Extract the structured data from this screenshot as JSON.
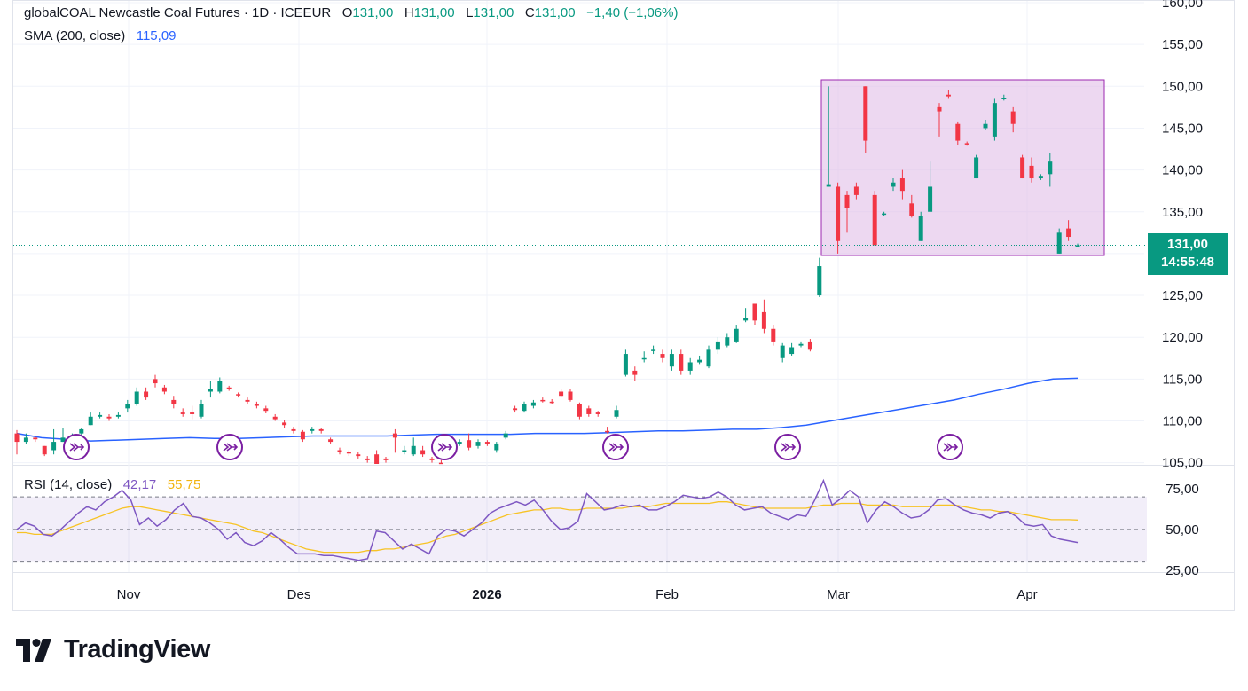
{
  "legend": {
    "title": "globalCOAL Newcastle Coal Futures · 1D · ICEEUR",
    "o_label": "O",
    "o_value": "131,00",
    "h_label": "H",
    "h_value": "131,00",
    "l_label": "L",
    "l_value": "131,00",
    "c_label": "C",
    "c_value": "131,00",
    "change": "−1,40 (−1,06%)",
    "sma_label": "SMA (200, close)",
    "sma_value": "115,09",
    "rsi_label": "RSI (14, close)",
    "rsi_value": "42,17",
    "rsi_ma_value": "55,75"
  },
  "price_tag": {
    "price": "131,00",
    "countdown": "14:55:48"
  },
  "brand": {
    "name": "TradingView"
  },
  "colors": {
    "up": "#089981",
    "down": "#f23645",
    "sma": "#2962ff",
    "rsi": "#7e57c2",
    "rsi_ma": "#f7c325",
    "highlight": "#e1bee7"
  },
  "chart_data": [
    {
      "type": "candlestick",
      "title": "globalCOAL Newcastle Coal Futures",
      "ylim": [
        105,
        160
      ],
      "y_ticks": [
        "160,00",
        "155,00",
        "150,00",
        "145,00",
        "140,00",
        "135,00",
        "130,00",
        "125,00",
        "120,00",
        "115,00",
        "110,00",
        "105,00"
      ],
      "x_ticks": [
        "Nov",
        "Des",
        "2026",
        "Feb",
        "Mar",
        "Apr"
      ],
      "candles": [
        [
          108.5,
          107.5,
          108.9,
          106.0
        ],
        [
          107.5,
          108.0,
          108.5,
          107.2
        ],
        [
          108.0,
          107.8,
          108.2,
          107.5
        ],
        [
          107.0,
          106.0,
          107.0,
          105.8
        ],
        [
          106.5,
          107.5,
          109.0,
          106.0
        ],
        [
          107.5,
          108.0,
          109.2,
          107.5
        ],
        [
          108.0,
          108.2,
          108.5,
          107.8
        ],
        [
          108.5,
          109.0,
          109.2,
          108.3
        ],
        [
          109.5,
          110.5,
          111.0,
          109.5
        ],
        [
          110.5,
          110.7,
          111.0,
          110.3
        ],
        [
          110.5,
          110.3,
          110.8,
          110.0
        ],
        [
          110.5,
          110.7,
          111.0,
          110.3
        ],
        [
          111.5,
          112.0,
          112.5,
          111.0
        ],
        [
          112.0,
          113.5,
          114.0,
          111.8
        ],
        [
          113.5,
          112.8,
          114.0,
          112.5
        ],
        [
          115.0,
          114.5,
          115.5,
          114.0
        ],
        [
          114.0,
          113.5,
          114.3,
          113.2
        ],
        [
          112.5,
          112.0,
          113.0,
          111.5
        ],
        [
          111.0,
          110.8,
          111.5,
          110.5
        ],
        [
          111.0,
          110.8,
          111.8,
          110.2
        ],
        [
          110.5,
          112.0,
          112.5,
          110.3
        ],
        [
          113.5,
          113.8,
          114.8,
          112.8
        ],
        [
          113.5,
          114.8,
          115.2,
          113.3
        ],
        [
          114.0,
          113.9,
          114.2,
          113.6
        ],
        [
          113.2,
          113.1,
          113.4,
          112.8
        ],
        [
          112.5,
          112.3,
          112.8,
          112.0
        ],
        [
          112.0,
          111.8,
          112.3,
          111.5
        ],
        [
          111.5,
          111.2,
          111.8,
          110.9
        ],
        [
          110.5,
          110.2,
          110.8,
          110.0
        ],
        [
          109.8,
          109.5,
          110.1,
          109.2
        ],
        [
          109.0,
          108.8,
          109.3,
          108.5
        ],
        [
          108.7,
          107.8,
          108.9,
          107.5
        ],
        [
          108.8,
          109.0,
          109.3,
          108.5
        ],
        [
          109.0,
          108.8,
          109.2,
          108.5
        ],
        [
          107.8,
          107.5,
          108.0,
          107.3
        ],
        [
          106.5,
          106.3,
          106.8,
          106.0
        ],
        [
          106.3,
          106.1,
          106.5,
          105.8
        ],
        [
          106.0,
          105.8,
          106.3,
          105.5
        ],
        [
          105.5,
          105.3,
          105.8,
          105.0
        ],
        [
          106.0,
          104.5,
          106.5,
          104.2
        ],
        [
          105.5,
          105.3,
          105.7,
          105.0
        ],
        [
          108.5,
          108.0,
          109.0,
          106.2
        ],
        [
          106.5,
          106.5,
          107.0,
          106.0
        ],
        [
          106.0,
          107.0,
          108.0,
          105.8
        ],
        [
          106.5,
          106.0,
          107.0,
          105.7
        ],
        [
          105.5,
          105.3,
          105.7,
          105.0
        ],
        [
          105.0,
          104.8,
          105.3,
          104.5
        ],
        [
          106.8,
          107.0,
          107.5,
          106.5
        ],
        [
          107.2,
          107.5,
          107.8,
          107.0
        ],
        [
          107.7,
          106.8,
          108.5,
          106.5
        ],
        [
          107.0,
          107.5,
          107.8,
          106.7
        ],
        [
          107.5,
          107.3,
          107.7,
          107.0
        ],
        [
          106.5,
          107.3,
          107.5,
          106.2
        ],
        [
          108.0,
          108.5,
          108.8,
          107.8
        ],
        [
          111.5,
          111.3,
          111.8,
          111.0
        ],
        [
          111.2,
          112.0,
          112.3,
          111.0
        ],
        [
          111.8,
          112.2,
          112.5,
          111.5
        ],
        [
          112.5,
          112.4,
          112.8,
          112.2
        ],
        [
          112.3,
          112.2,
          112.6,
          112.0
        ],
        [
          113.5,
          113.0,
          113.8,
          112.8
        ],
        [
          113.5,
          112.5,
          113.8,
          112.3
        ],
        [
          112.0,
          110.5,
          112.2,
          110.2
        ],
        [
          111.5,
          110.8,
          111.8,
          110.5
        ],
        [
          111.0,
          110.8,
          111.2,
          110.5
        ],
        [
          108.8,
          108.7,
          109.3,
          108.5
        ],
        [
          110.5,
          111.3,
          111.8,
          110.3
        ],
        [
          115.5,
          118.0,
          118.5,
          115.3
        ],
        [
          116.0,
          115.5,
          116.5,
          114.8
        ],
        [
          117.5,
          117.5,
          118.3,
          117.0
        ],
        [
          118.5,
          118.5,
          119.0,
          118.0
        ],
        [
          118.0,
          117.5,
          118.5,
          117.0
        ],
        [
          116.5,
          118.0,
          118.5,
          116.0
        ],
        [
          118.0,
          116.0,
          118.5,
          115.5
        ],
        [
          116.0,
          117.0,
          117.5,
          115.5
        ],
        [
          117.0,
          117.3,
          117.8,
          116.8
        ],
        [
          116.5,
          118.5,
          119.0,
          116.3
        ],
        [
          118.5,
          119.5,
          120.0,
          118.0
        ],
        [
          119.0,
          120.0,
          120.5,
          118.8
        ],
        [
          119.5,
          121.0,
          121.5,
          119.3
        ],
        [
          122.0,
          122.3,
          123.5,
          121.8
        ],
        [
          124.0,
          122.0,
          124.0,
          121.5
        ],
        [
          123.0,
          121.0,
          124.5,
          120.5
        ],
        [
          121.0,
          119.5,
          121.5,
          119.0
        ],
        [
          117.5,
          119.0,
          119.3,
          117.0
        ],
        [
          118.0,
          118.8,
          119.3,
          117.8
        ],
        [
          119.0,
          119.2,
          119.5,
          118.8
        ],
        [
          119.5,
          118.5,
          119.8,
          118.3
        ],
        [
          125.0,
          128.5,
          129.5,
          124.8
        ],
        [
          138.0,
          138.3,
          150.0,
          138.0
        ],
        [
          138.0,
          131.5,
          138.5,
          130.0
        ],
        [
          137.0,
          135.5,
          137.5,
          132.5
        ],
        [
          138.0,
          137.0,
          138.5,
          136.5
        ],
        [
          150.0,
          143.5,
          150.0,
          142.0
        ],
        [
          137.0,
          131.0,
          137.5,
          131.0
        ],
        [
          134.8,
          134.8,
          135.0,
          134.5
        ],
        [
          138.0,
          138.5,
          139.0,
          137.5
        ],
        [
          139.0,
          137.5,
          140.0,
          136.5
        ],
        [
          136.0,
          134.5,
          137.0,
          134.3
        ],
        [
          131.5,
          134.5,
          135.0,
          131.5
        ],
        [
          135.0,
          138.0,
          141.0,
          135.0
        ],
        [
          147.5,
          147.0,
          148.0,
          144.0
        ],
        [
          149.0,
          148.8,
          149.5,
          148.5
        ],
        [
          145.5,
          143.5,
          145.8,
          143.0
        ],
        [
          143.2,
          143.1,
          143.4,
          142.9
        ],
        [
          139.0,
          141.5,
          141.8,
          139.0
        ],
        [
          145.0,
          145.5,
          146.0,
          144.8
        ],
        [
          144.0,
          148.0,
          148.5,
          143.5
        ],
        [
          148.5,
          148.6,
          149.0,
          148.3
        ],
        [
          147.0,
          145.5,
          147.5,
          144.5
        ],
        [
          141.5,
          139.0,
          141.8,
          139.0
        ],
        [
          140.5,
          139.0,
          141.5,
          138.5
        ],
        [
          139.0,
          139.3,
          139.5,
          138.8
        ],
        [
          139.5,
          141.0,
          142.0,
          138.0
        ],
        [
          130.0,
          132.5,
          133.0,
          130.0
        ],
        [
          133.0,
          132.0,
          134.0,
          131.5
        ],
        [
          131.0,
          131.0,
          131.2,
          130.8
        ]
      ],
      "candle_fields": [
        "open",
        "close",
        "high",
        "low"
      ],
      "sma_series": {
        "name": "SMA (200, close)",
        "values": [
          108.5,
          108.0,
          107.8,
          107.6,
          107.7,
          107.8,
          107.9,
          108.0,
          107.9,
          107.9,
          108.0,
          108.1,
          108.2,
          108.2,
          108.2,
          108.2,
          108.3,
          108.4,
          108.4,
          108.4,
          108.4,
          108.5,
          108.5,
          108.5,
          108.6,
          108.7,
          108.8,
          108.8,
          108.9,
          109.0,
          109.0,
          109.2,
          109.5,
          110.0,
          110.5,
          111.0,
          111.5,
          112.0,
          112.5,
          113.2,
          113.8,
          114.5,
          115.0,
          115.1
        ]
      },
      "last_price": 131.0
    },
    {
      "type": "line",
      "title": "RSI (14, close)",
      "ylim": [
        25,
        75
      ],
      "y_ticks": [
        "75,00",
        "50,00",
        "25,00"
      ],
      "levels": [
        70,
        50,
        30
      ],
      "series": [
        {
          "name": "RSI",
          "values": [
            50,
            54,
            52,
            47,
            46,
            50,
            55,
            60,
            64,
            62,
            67,
            70,
            74,
            68,
            53,
            57,
            52,
            56,
            62,
            66,
            58,
            57,
            54,
            50,
            44,
            48,
            42,
            40,
            43,
            48,
            44,
            39,
            35,
            35,
            35,
            34,
            34,
            33,
            32,
            31,
            32,
            49,
            48,
            43,
            38,
            41,
            38,
            35,
            46,
            50,
            49,
            46,
            50,
            54,
            60,
            63,
            65,
            67,
            65,
            68,
            62,
            55,
            50,
            51,
            55,
            72,
            67,
            62,
            63,
            65,
            64,
            65,
            62,
            62,
            64,
            67,
            71,
            70,
            69,
            70,
            73,
            70,
            65,
            62,
            63,
            64,
            60,
            58,
            56,
            59,
            58,
            68,
            80,
            65,
            69,
            74,
            70,
            54,
            62,
            67,
            64,
            60,
            57,
            58,
            62,
            68,
            69,
            65,
            62,
            60,
            59,
            57,
            60,
            61,
            58,
            53,
            52,
            53,
            46,
            44,
            43,
            42
          ]
        },
        {
          "name": "RSI MA",
          "values": [
            48,
            48,
            47,
            47,
            47,
            49,
            51,
            53,
            55,
            57,
            59,
            61,
            63,
            64,
            64,
            63,
            62,
            61,
            60,
            59,
            58,
            57,
            56,
            55,
            54,
            53,
            51,
            49,
            48,
            46,
            44,
            42,
            40,
            38,
            37,
            36,
            36,
            36,
            36,
            36,
            37,
            37,
            38,
            38,
            39,
            40,
            41,
            42,
            44,
            46,
            47,
            49,
            51,
            53,
            55,
            57,
            59,
            60,
            61,
            62,
            62,
            63,
            63,
            62,
            62,
            63,
            63,
            63,
            63,
            63,
            64,
            64,
            64,
            65,
            66,
            66,
            66,
            66,
            66,
            66,
            67,
            67,
            66,
            65,
            64,
            63,
            63,
            63,
            63,
            63,
            63,
            64,
            65,
            65,
            66,
            66,
            66,
            65,
            65,
            65,
            65,
            64,
            64,
            64,
            64,
            65,
            65,
            65,
            64,
            63,
            62,
            62,
            61,
            61,
            60,
            59,
            58,
            57,
            56,
            56,
            56,
            55.75
          ]
        }
      ],
      "last_values": [
        42.17,
        55.75
      ]
    }
  ],
  "timeline": {
    "x_tick_labels": [
      "Nov",
      "Des",
      "2026",
      "Feb",
      "Mar",
      "Apr"
    ]
  }
}
